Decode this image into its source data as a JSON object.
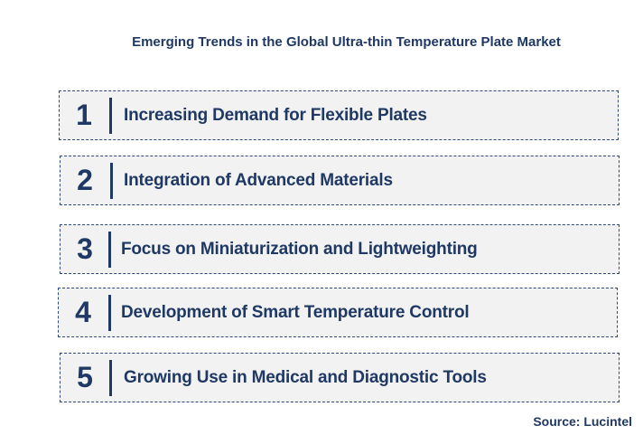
{
  "title": "Emerging Trends in the Global Ultra-thin Temperature Plate Market",
  "trends": [
    {
      "number": "1",
      "label": "Increasing Demand for Flexible Plates"
    },
    {
      "number": "2",
      "label": "Integration of Advanced Materials"
    },
    {
      "number": "3",
      "label": "Focus on Miniaturization and Lightweighting"
    },
    {
      "number": "4",
      "label": "Development of Smart Temperature Control"
    },
    {
      "number": "5",
      "label": "Growing Use in Medical and Diagnostic Tools"
    }
  ],
  "source": "Source: Lucintel",
  "colors": {
    "text": "#1f3864",
    "box_background": "#f2f2f2",
    "box_border": "#2e4a78"
  }
}
